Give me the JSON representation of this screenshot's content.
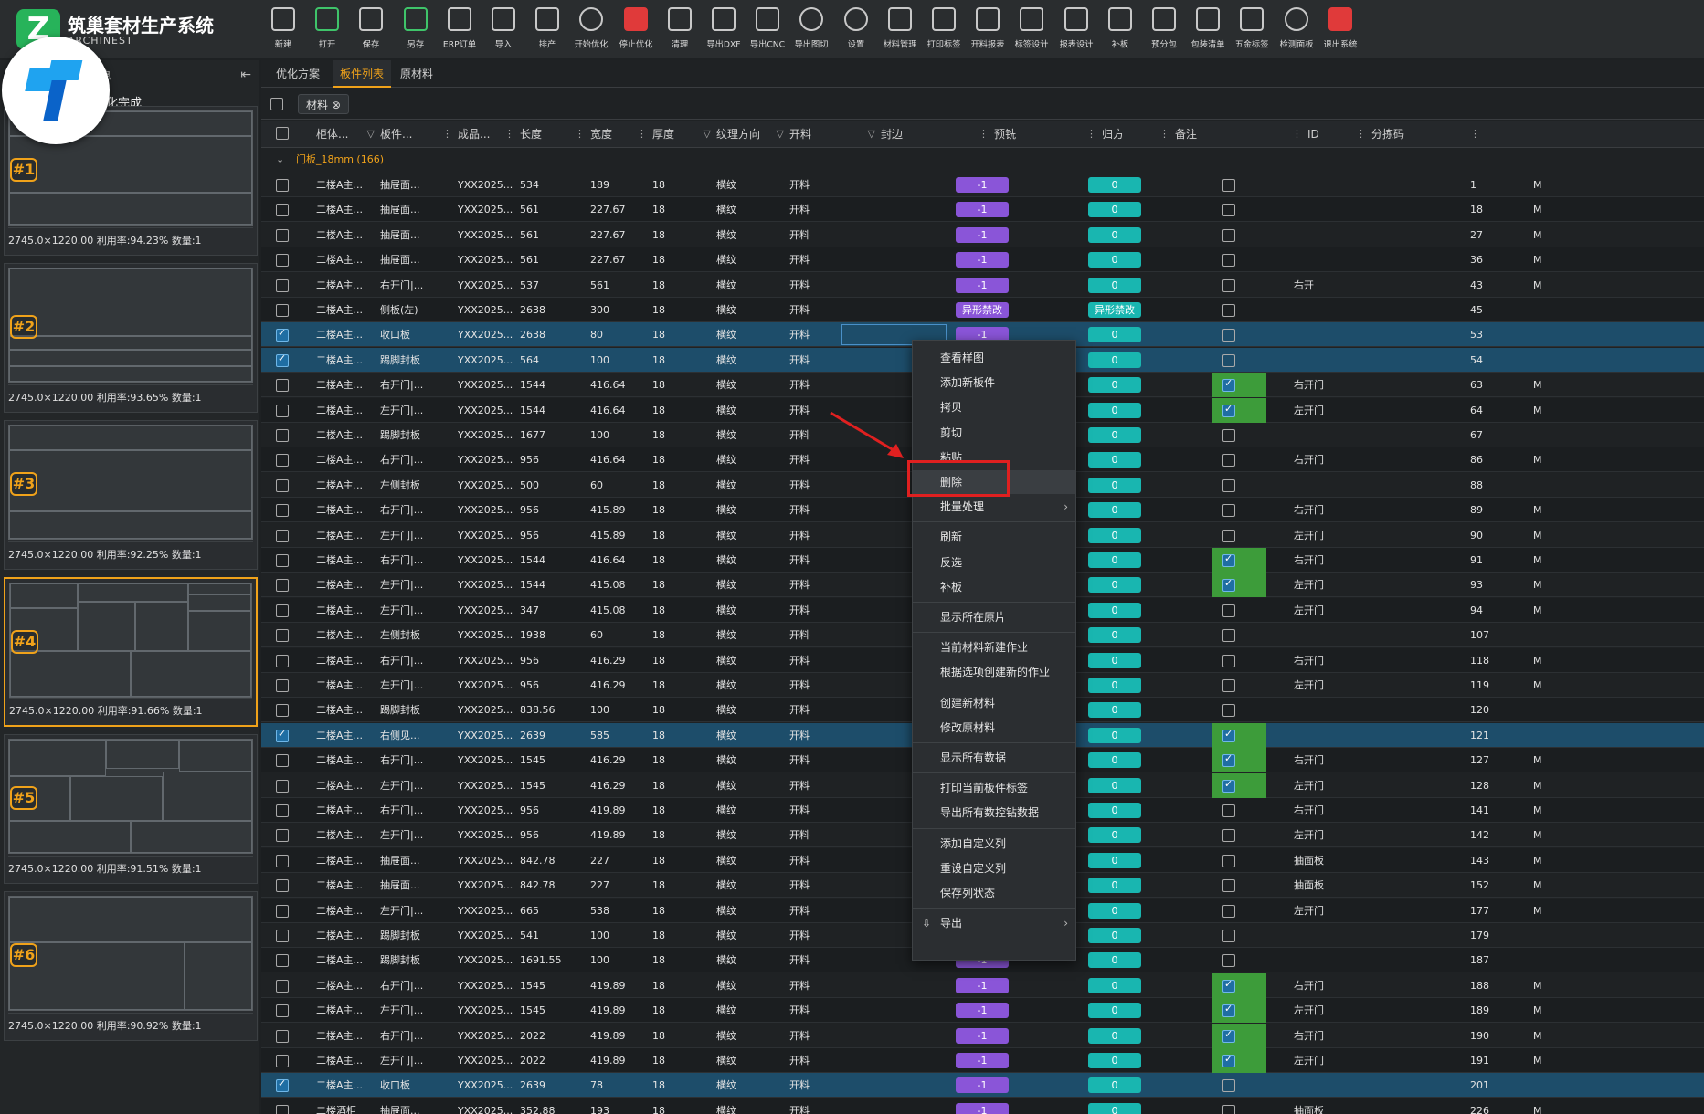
{
  "app": {
    "title": "筑巢套材生产系统",
    "subtitle": "ARCHINEST"
  },
  "toolbar": [
    "新建",
    "打开",
    "保存",
    "另存",
    "ERP订单",
    "导入",
    "排产",
    "开始优化",
    "停止优化",
    "清理",
    "导出DXF",
    "导出CNC",
    "导出图切",
    "设置",
    "材料管理",
    "打印标签",
    "开料报表",
    "标签设计",
    "报表设计",
    "补板",
    "预分包",
    "包装清单",
    "五金标签",
    "检测面板",
    "退出系统"
  ],
  "left": {
    "header": "息",
    "status": "化完成",
    "collapse": "⇤",
    "sheets": [
      {
        "num": "#1",
        "caption": "2745.0×1220.00 利用率:94.23% 数量:1"
      },
      {
        "num": "#2",
        "caption": "2745.0×1220.00 利用率:93.65% 数量:1"
      },
      {
        "num": "#3",
        "caption": "2745.0×1220.00 利用率:92.25% 数量:1"
      },
      {
        "num": "#4",
        "caption": "2745.0×1220.00 利用率:91.66% 数量:1"
      },
      {
        "num": "#5",
        "caption": "2745.0×1220.00 利用率:91.51% 数量:1"
      },
      {
        "num": "#6",
        "caption": "2745.0×1220.00 利用率:90.92% 数量:1"
      }
    ]
  },
  "tabs": [
    "优化方案",
    "板件列表",
    "原材料"
  ],
  "group_chip": "材料 ⊗",
  "columns": [
    "柜体...",
    "板件...",
    "成品...",
    "长度",
    "宽度",
    "厚度",
    "纹理方向",
    "开料",
    "封边",
    "预铣",
    "归方",
    "备注",
    "ID",
    "分拣码"
  ],
  "group_label": "门板_18mm (166)",
  "rows": [
    {
      "c": "二楼A主...",
      "p": "抽屉面...",
      "f": "YXX2025...",
      "l": "534",
      "w": "189",
      "t": "18",
      "g": "横纹",
      "k": "开料",
      "e": "-1",
      "y": "0",
      "chk": false,
      "sq": false,
      "note": "",
      "id": "1",
      "m": "M"
    },
    {
      "c": "二楼A主...",
      "p": "抽屉面...",
      "f": "YXX2025...",
      "l": "561",
      "w": "227.67",
      "t": "18",
      "g": "横纹",
      "k": "开料",
      "e": "-1",
      "y": "0",
      "chk": false,
      "sq": false,
      "note": "",
      "id": "18",
      "m": "M"
    },
    {
      "c": "二楼A主...",
      "p": "抽屉面...",
      "f": "YXX2025...",
      "l": "561",
      "w": "227.67",
      "t": "18",
      "g": "横纹",
      "k": "开料",
      "e": "-1",
      "y": "0",
      "chk": false,
      "sq": false,
      "note": "",
      "id": "27",
      "m": "M"
    },
    {
      "c": "二楼A主...",
      "p": "抽屉面...",
      "f": "YXX2025...",
      "l": "561",
      "w": "227.67",
      "t": "18",
      "g": "横纹",
      "k": "开料",
      "e": "-1",
      "y": "0",
      "chk": false,
      "sq": false,
      "note": "",
      "id": "36",
      "m": "M"
    },
    {
      "c": "二楼A主...",
      "p": "右开门|...",
      "f": "YXX2025...",
      "l": "537",
      "w": "561",
      "t": "18",
      "g": "横纹",
      "k": "开料",
      "e": "-1",
      "y": "0",
      "chk": false,
      "sq": false,
      "note": "右开",
      "id": "43",
      "m": "M"
    },
    {
      "c": "二楼A主...",
      "p": "侧板(左)",
      "f": "YXX2025...",
      "l": "2638",
      "w": "300",
      "t": "18",
      "g": "横纹",
      "k": "开料",
      "e": "异形禁改",
      "y": "异形禁改",
      "chk": false,
      "sq": false,
      "note": "",
      "id": "45",
      "m": ""
    },
    {
      "c": "二楼A主...",
      "p": "收口板",
      "f": "YXX2025...",
      "l": "2638",
      "w": "80",
      "t": "18",
      "g": "横纹",
      "k": "开料",
      "e": "-1",
      "y": "0",
      "chk": true,
      "sq": false,
      "note": "",
      "id": "53",
      "m": "",
      "sel": true,
      "box": true
    },
    {
      "c": "二楼A主...",
      "p": "踢脚封板",
      "f": "YXX2025...",
      "l": "564",
      "w": "100",
      "t": "18",
      "g": "横纹",
      "k": "开料",
      "e": "-1",
      "y": "0",
      "chk": true,
      "sq": false,
      "note": "",
      "id": "54",
      "m": "",
      "sel": true
    },
    {
      "c": "二楼A主...",
      "p": "右开门|...",
      "f": "YXX2025...",
      "l": "1544",
      "w": "416.64",
      "t": "18",
      "g": "横纹",
      "k": "开料",
      "e": "-1",
      "y": "0",
      "chk": false,
      "sq": true,
      "note": "右开门",
      "id": "63",
      "m": "M"
    },
    {
      "c": "二楼A主...",
      "p": "左开门|...",
      "f": "YXX2025...",
      "l": "1544",
      "w": "416.64",
      "t": "18",
      "g": "横纹",
      "k": "开料",
      "e": "-1",
      "y": "0",
      "chk": false,
      "sq": true,
      "note": "左开门",
      "id": "64",
      "m": "M"
    },
    {
      "c": "二楼A主...",
      "p": "踢脚封板",
      "f": "YXX2025...",
      "l": "1677",
      "w": "100",
      "t": "18",
      "g": "横纹",
      "k": "开料",
      "e": "-1",
      "y": "0",
      "chk": false,
      "sq": false,
      "note": "",
      "id": "67",
      "m": ""
    },
    {
      "c": "二楼A主...",
      "p": "右开门|...",
      "f": "YXX2025...",
      "l": "956",
      "w": "416.64",
      "t": "18",
      "g": "横纹",
      "k": "开料",
      "e": "-1",
      "y": "0",
      "chk": false,
      "sq": false,
      "note": "右开门",
      "id": "86",
      "m": "M"
    },
    {
      "c": "二楼A主...",
      "p": "左侧封板",
      "f": "YXX2025...",
      "l": "500",
      "w": "60",
      "t": "18",
      "g": "横纹",
      "k": "开料",
      "e": "-1",
      "y": "0",
      "chk": false,
      "sq": false,
      "note": "",
      "id": "88",
      "m": ""
    },
    {
      "c": "二楼A主...",
      "p": "右开门|...",
      "f": "YXX2025...",
      "l": "956",
      "w": "415.89",
      "t": "18",
      "g": "横纹",
      "k": "开料",
      "e": "-1",
      "y": "0",
      "chk": false,
      "sq": false,
      "note": "右开门",
      "id": "89",
      "m": "M"
    },
    {
      "c": "二楼A主...",
      "p": "左开门|...",
      "f": "YXX2025...",
      "l": "956",
      "w": "415.89",
      "t": "18",
      "g": "横纹",
      "k": "开料",
      "e": "-1",
      "y": "0",
      "chk": false,
      "sq": false,
      "note": "左开门",
      "id": "90",
      "m": "M"
    },
    {
      "c": "二楼A主...",
      "p": "右开门|...",
      "f": "YXX2025...",
      "l": "1544",
      "w": "416.64",
      "t": "18",
      "g": "横纹",
      "k": "开料",
      "e": "-1",
      "y": "0",
      "chk": false,
      "sq": true,
      "note": "右开门",
      "id": "91",
      "m": "M"
    },
    {
      "c": "二楼A主...",
      "p": "左开门|...",
      "f": "YXX2025...",
      "l": "1544",
      "w": "415.08",
      "t": "18",
      "g": "横纹",
      "k": "开料",
      "e": "-1",
      "y": "0",
      "chk": false,
      "sq": true,
      "note": "左开门",
      "id": "93",
      "m": "M"
    },
    {
      "c": "二楼A主...",
      "p": "左开门|...",
      "f": "YXX2025...",
      "l": "347",
      "w": "415.08",
      "t": "18",
      "g": "横纹",
      "k": "开料",
      "e": "-1",
      "y": "0",
      "chk": false,
      "sq": false,
      "note": "左开门",
      "id": "94",
      "m": "M"
    },
    {
      "c": "二楼A主...",
      "p": "左侧封板",
      "f": "YXX2025...",
      "l": "1938",
      "w": "60",
      "t": "18",
      "g": "横纹",
      "k": "开料",
      "e": "-1",
      "y": "0",
      "chk": false,
      "sq": false,
      "note": "",
      "id": "107",
      "m": ""
    },
    {
      "c": "二楼A主...",
      "p": "右开门|...",
      "f": "YXX2025...",
      "l": "956",
      "w": "416.29",
      "t": "18",
      "g": "横纹",
      "k": "开料",
      "e": "-1",
      "y": "0",
      "chk": false,
      "sq": false,
      "note": "右开门",
      "id": "118",
      "m": "M"
    },
    {
      "c": "二楼A主...",
      "p": "左开门|...",
      "f": "YXX2025...",
      "l": "956",
      "w": "416.29",
      "t": "18",
      "g": "横纹",
      "k": "开料",
      "e": "-1",
      "y": "0",
      "chk": false,
      "sq": false,
      "note": "左开门",
      "id": "119",
      "m": "M"
    },
    {
      "c": "二楼A主...",
      "p": "踢脚封板",
      "f": "YXX2025...",
      "l": "838.56",
      "w": "100",
      "t": "18",
      "g": "横纹",
      "k": "开料",
      "e": "-1",
      "y": "0",
      "chk": false,
      "sq": false,
      "note": "",
      "id": "120",
      "m": ""
    },
    {
      "c": "二楼A主...",
      "p": "右侧见...",
      "f": "YXX2025...",
      "l": "2639",
      "w": "585",
      "t": "18",
      "g": "横纹",
      "k": "开料",
      "e": "-1",
      "y": "0",
      "chk": true,
      "sq": true,
      "note": "",
      "id": "121",
      "m": "",
      "sel": true
    },
    {
      "c": "二楼A主...",
      "p": "右开门|...",
      "f": "YXX2025...",
      "l": "1545",
      "w": "416.29",
      "t": "18",
      "g": "横纹",
      "k": "开料",
      "e": "-1",
      "y": "0",
      "chk": false,
      "sq": true,
      "note": "右开门",
      "id": "127",
      "m": "M"
    },
    {
      "c": "二楼A主...",
      "p": "左开门|...",
      "f": "YXX2025...",
      "l": "1545",
      "w": "416.29",
      "t": "18",
      "g": "横纹",
      "k": "开料",
      "e": "-1",
      "y": "0",
      "chk": false,
      "sq": true,
      "note": "左开门",
      "id": "128",
      "m": "M"
    },
    {
      "c": "二楼A主...",
      "p": "右开门|...",
      "f": "YXX2025...",
      "l": "956",
      "w": "419.89",
      "t": "18",
      "g": "横纹",
      "k": "开料",
      "e": "-1",
      "y": "0",
      "chk": false,
      "sq": false,
      "note": "右开门",
      "id": "141",
      "m": "M"
    },
    {
      "c": "二楼A主...",
      "p": "左开门|...",
      "f": "YXX2025...",
      "l": "956",
      "w": "419.89",
      "t": "18",
      "g": "横纹",
      "k": "开料",
      "e": "-1",
      "y": "0",
      "chk": false,
      "sq": false,
      "note": "左开门",
      "id": "142",
      "m": "M"
    },
    {
      "c": "二楼A主...",
      "p": "抽屉面...",
      "f": "YXX2025...",
      "l": "842.78",
      "w": "227",
      "t": "18",
      "g": "横纹",
      "k": "开料",
      "e": "-1",
      "y": "0",
      "chk": false,
      "sq": false,
      "note": "抽面板",
      "id": "143",
      "m": "M"
    },
    {
      "c": "二楼A主...",
      "p": "抽屉面...",
      "f": "YXX2025...",
      "l": "842.78",
      "w": "227",
      "t": "18",
      "g": "横纹",
      "k": "开料",
      "e": "-1",
      "y": "0",
      "chk": false,
      "sq": false,
      "note": "抽面板",
      "id": "152",
      "m": "M"
    },
    {
      "c": "二楼A主...",
      "p": "左开门|...",
      "f": "YXX2025...",
      "l": "665",
      "w": "538",
      "t": "18",
      "g": "横纹",
      "k": "开料",
      "e": "-1",
      "y": "0",
      "chk": false,
      "sq": false,
      "note": "左开门",
      "id": "177",
      "m": "M"
    },
    {
      "c": "二楼A主...",
      "p": "踢脚封板",
      "f": "YXX2025...",
      "l": "541",
      "w": "100",
      "t": "18",
      "g": "横纹",
      "k": "开料",
      "e": "-1",
      "y": "0",
      "chk": false,
      "sq": false,
      "note": "",
      "id": "179",
      "m": ""
    },
    {
      "c": "二楼A主...",
      "p": "踢脚封板",
      "f": "YXX2025...",
      "l": "1691.55",
      "w": "100",
      "t": "18",
      "g": "横纹",
      "k": "开料",
      "e": "-1",
      "y": "0",
      "chk": false,
      "sq": false,
      "note": "",
      "id": "187",
      "m": ""
    },
    {
      "c": "二楼A主...",
      "p": "右开门|...",
      "f": "YXX2025...",
      "l": "1545",
      "w": "419.89",
      "t": "18",
      "g": "横纹",
      "k": "开料",
      "e": "-1",
      "y": "0",
      "chk": false,
      "sq": true,
      "note": "右开门",
      "id": "188",
      "m": "M"
    },
    {
      "c": "二楼A主...",
      "p": "左开门|...",
      "f": "YXX2025...",
      "l": "1545",
      "w": "419.89",
      "t": "18",
      "g": "横纹",
      "k": "开料",
      "e": "-1",
      "y": "0",
      "chk": false,
      "sq": true,
      "note": "左开门",
      "id": "189",
      "m": "M"
    },
    {
      "c": "二楼A主...",
      "p": "右开门|...",
      "f": "YXX2025...",
      "l": "2022",
      "w": "419.89",
      "t": "18",
      "g": "横纹",
      "k": "开料",
      "e": "-1",
      "y": "0",
      "chk": false,
      "sq": true,
      "note": "右开门",
      "id": "190",
      "m": "M"
    },
    {
      "c": "二楼A主...",
      "p": "左开门|...",
      "f": "YXX2025...",
      "l": "2022",
      "w": "419.89",
      "t": "18",
      "g": "横纹",
      "k": "开料",
      "e": "-1",
      "y": "0",
      "chk": false,
      "sq": true,
      "note": "左开门",
      "id": "191",
      "m": "M"
    },
    {
      "c": "二楼A主...",
      "p": "收口板",
      "f": "YXX2025...",
      "l": "2639",
      "w": "78",
      "t": "18",
      "g": "横纹",
      "k": "开料",
      "e": "-1",
      "y": "0",
      "chk": true,
      "sq": false,
      "note": "",
      "id": "201",
      "m": "",
      "sel": true
    },
    {
      "c": "二楼酒柜",
      "p": "抽屉面...",
      "f": "YXX2025...",
      "l": "352.88",
      "w": "193",
      "t": "18",
      "g": "横纹",
      "k": "开料",
      "e": "-1",
      "y": "0",
      "chk": false,
      "sq": false,
      "note": "抽面板",
      "id": "226",
      "m": "M"
    }
  ],
  "context_menu": [
    {
      "label": "查看样图"
    },
    {
      "label": "添加新板件"
    },
    {
      "label": "拷贝"
    },
    {
      "label": "剪切"
    },
    {
      "label": "粘贴"
    },
    {
      "label": "删除",
      "hl": true
    },
    {
      "label": "批量处理",
      "sub": true
    },
    {
      "sep": true
    },
    {
      "label": "刷新"
    },
    {
      "label": "反选"
    },
    {
      "label": "补板"
    },
    {
      "sep": true
    },
    {
      "label": "显示所在原片"
    },
    {
      "sep": true
    },
    {
      "label": "当前材料新建作业"
    },
    {
      "label": "根据选项创建新的作业"
    },
    {
      "sep": true
    },
    {
      "label": "创建新材料"
    },
    {
      "label": "修改原材料"
    },
    {
      "sep": true
    },
    {
      "label": "显示所有数据"
    },
    {
      "sep": true
    },
    {
      "label": "打印当前板件标签"
    },
    {
      "label": "导出所有数控钻数据"
    },
    {
      "sep": true
    },
    {
      "label": "添加自定义列"
    },
    {
      "label": "重设自定义列"
    },
    {
      "label": "保存列状态"
    },
    {
      "sep": true
    },
    {
      "label": "导出",
      "sub": true,
      "icon": true
    }
  ],
  "colors": {
    "accent": "#f0a21a",
    "purple": "#8a55d8",
    "teal": "#19b6b0",
    "green": "#3d9c3a",
    "selected": "#1d4d6a",
    "red": "#e02020"
  }
}
